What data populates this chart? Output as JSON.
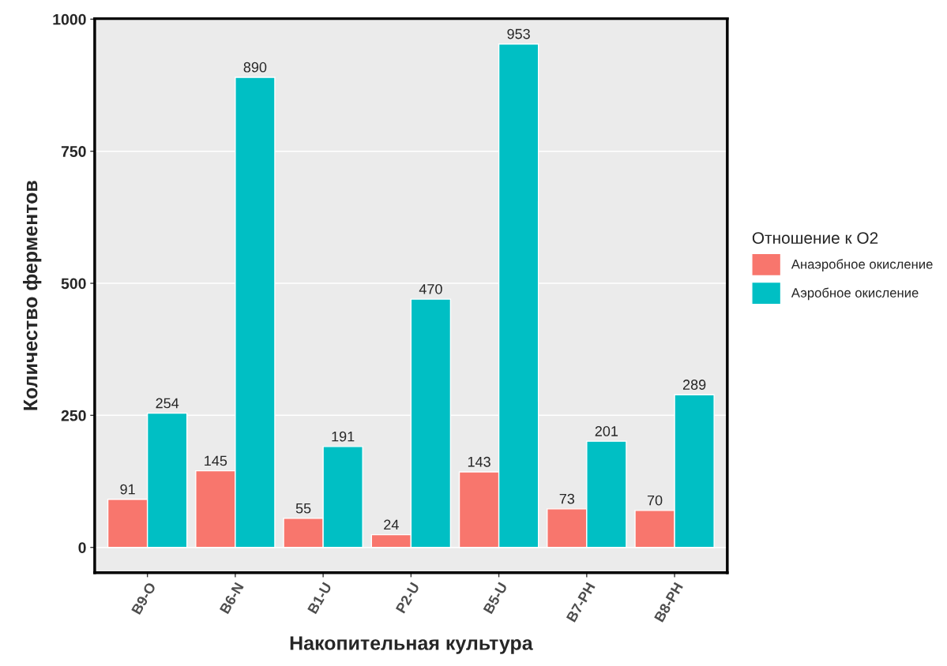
{
  "chart_data": {
    "type": "bar",
    "xlabel": "Накопительная культура",
    "ylabel": "Количество ферментов",
    "legend_title": "Отношение к O2",
    "categories": [
      "B9-O",
      "B6-N",
      "B1-U",
      "P2-U",
      "B5-U",
      "B7-PH",
      "B8-PH"
    ],
    "series": [
      {
        "name": "Анаэробное окисление",
        "color": "#f8766d",
        "values": [
          91,
          145,
          55,
          24,
          143,
          73,
          70
        ]
      },
      {
        "name": "Аэробное окисление",
        "color": "#00bfc4",
        "values": [
          254,
          890,
          191,
          470,
          953,
          201,
          289
        ]
      }
    ],
    "ylim": [
      -48,
      1001
    ],
    "yticks": [
      0,
      250,
      500,
      750,
      1000
    ],
    "grid": "y",
    "legend": "right",
    "data_labels": true
  }
}
